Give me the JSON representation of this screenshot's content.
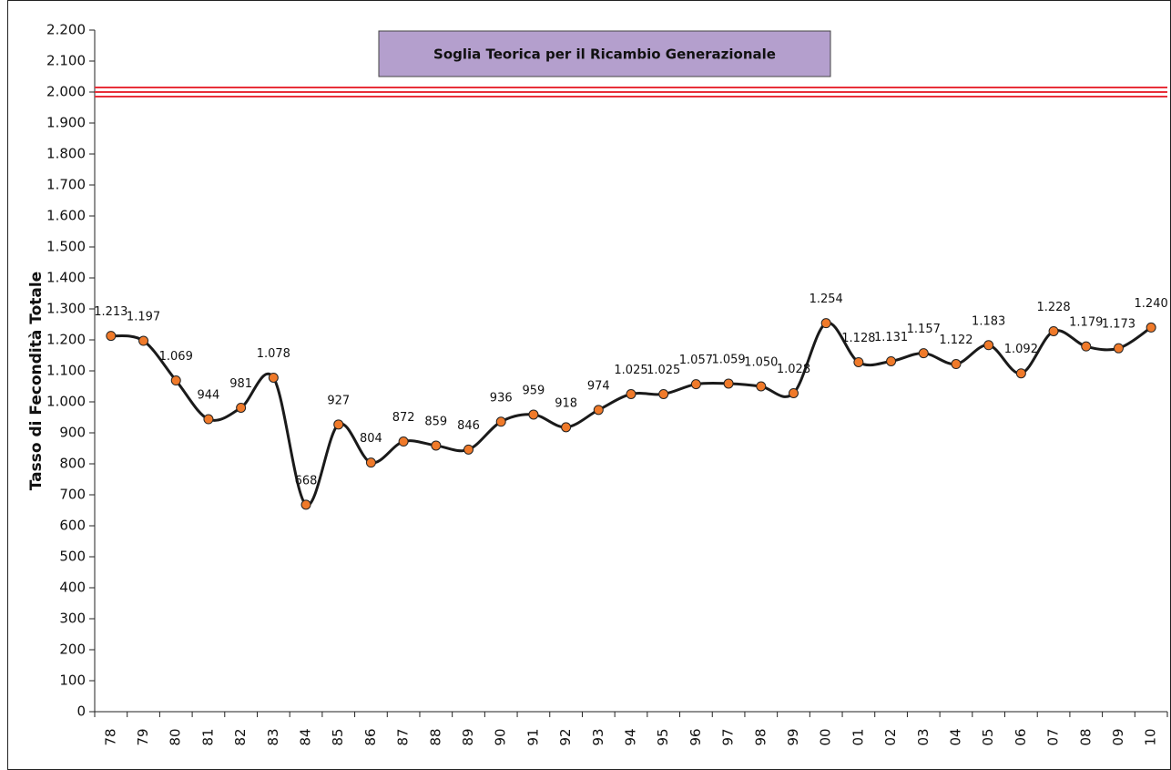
{
  "chart_data": {
    "type": "line",
    "y_label": "Tasso di Fecondità Totale",
    "annotation": "Soglia Teorica per il Ricambio Generazionale",
    "threshold": 2000,
    "threshold_color": "#e8303a",
    "categories": [
      "78",
      "79",
      "80",
      "81",
      "82",
      "83",
      "84",
      "85",
      "86",
      "87",
      "88",
      "89",
      "90",
      "91",
      "92",
      "93",
      "94",
      "95",
      "96",
      "97",
      "98",
      "99",
      "00",
      "01",
      "02",
      "03",
      "04",
      "05",
      "06",
      "07",
      "08",
      "09",
      "10"
    ],
    "series": [
      {
        "name": "Tasso di Fecondità Totale",
        "color": "#1a1a1a",
        "marker_color": "#f07a2a",
        "values": [
          1213,
          1197,
          1069,
          944,
          981,
          1078,
          668,
          927,
          804,
          872,
          859,
          846,
          936,
          959,
          918,
          974,
          1025,
          1025,
          1057,
          1059,
          1050,
          1028,
          1254,
          1128,
          1131,
          1157,
          1122,
          1183,
          1092,
          1228,
          1179,
          1173,
          1240
        ],
        "value_labels": [
          "1.213",
          "1.197",
          "1.069",
          "944",
          "981",
          "1.078",
          "668",
          "927",
          "804",
          "872",
          "859",
          "846",
          "936",
          "959",
          "918",
          "974",
          "1.025",
          "1.025",
          "1.057",
          "1.059",
          "1.050",
          "1.028",
          "1.254",
          "1.128",
          "1.131",
          "1.157",
          "1.122",
          "1.183",
          "1.092",
          "1.228",
          "1.179",
          "1.173",
          "1.240"
        ]
      }
    ],
    "ylim": [
      0,
      2200
    ],
    "yticks": [
      0,
      100,
      200,
      300,
      400,
      500,
      600,
      700,
      800,
      900,
      {
        "value": 1000,
        "label": "1.000"
      },
      {
        "value": 1100,
        "label": "1.100"
      },
      {
        "value": 1200,
        "label": "1.200"
      },
      {
        "value": 1300,
        "label": "1.300"
      },
      {
        "value": 1400,
        "label": "1.400"
      },
      {
        "value": 1500,
        "label": "1.500"
      },
      {
        "value": 1600,
        "label": "1.600"
      },
      {
        "value": 1700,
        "label": "1.700"
      },
      {
        "value": 1800,
        "label": "1.800"
      },
      {
        "value": 1900,
        "label": "1.900"
      },
      {
        "value": 2000,
        "label": "2.000"
      },
      {
        "value": 2100,
        "label": "2.100"
      },
      {
        "value": 2200,
        "label": "2.200"
      }
    ],
    "grid": false
  }
}
